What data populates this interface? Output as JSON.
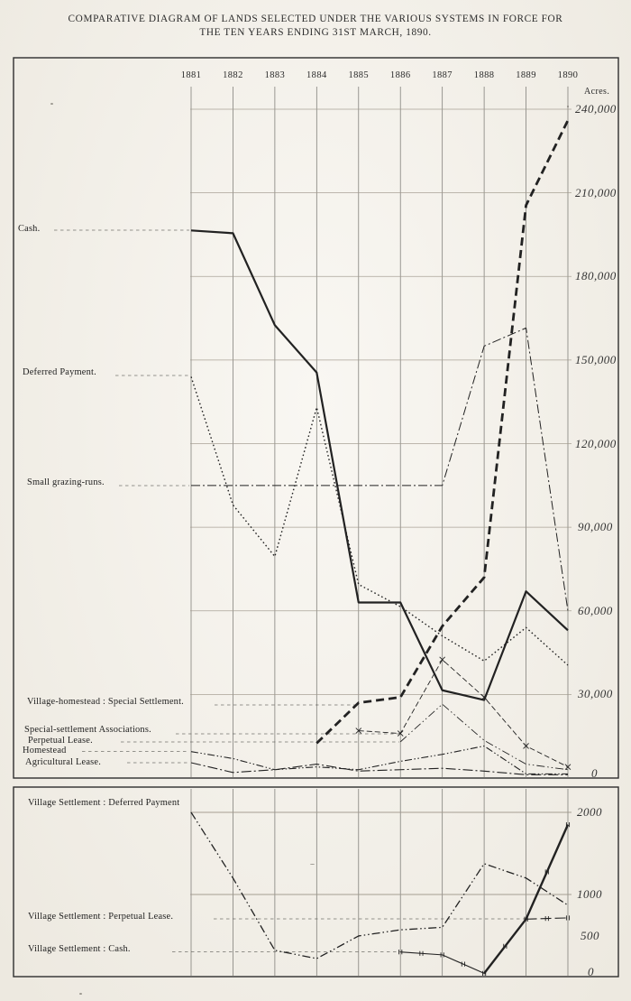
{
  "title": {
    "line1": "COMPARATIVE DIAGRAM OF LANDS SELECTED UNDER THE VARIOUS SYSTEMS IN FORCE FOR",
    "line2": "THE TEN YEARS ENDING 31ST MARCH, 1890."
  },
  "colors": {
    "ink": "#222222",
    "grid_vertical": "#6f6e69",
    "grid_horizontal": "#a19a8e",
    "box": "#2e2e2e",
    "leader": "#555550"
  },
  "chart_data": [
    {
      "id": "main",
      "type": "line",
      "title": "Lands selected under the various systems, 1881-1890",
      "unit_label": "Acres.",
      "years": [
        "1881",
        "1882",
        "1883",
        "1884",
        "1885",
        "1886",
        "1887",
        "1888",
        "1889",
        "1890"
      ],
      "ylim": [
        0,
        240000
      ],
      "grid": true,
      "legend_position": "left-margin-labels",
      "y_ticks": [
        {
          "label": "240,000",
          "value": 240000
        },
        {
          "label": "210,000",
          "value": 210000
        },
        {
          "label": "180,000",
          "value": 180000
        },
        {
          "label": "150,000",
          "value": 150000
        },
        {
          "label": "120,000",
          "value": 120000
        },
        {
          "label": "90,000",
          "value": 90000
        },
        {
          "label": "60,000",
          "value": 60000
        },
        {
          "label": "30,000",
          "value": 30000
        },
        {
          "label": "0",
          "value": 0
        }
      ],
      "series": [
        {
          "id": "cash",
          "label": "Cash.",
          "values": [
            196500,
            195500,
            162500,
            145500,
            63000,
            63000,
            31500,
            28000,
            67000,
            53000
          ]
        },
        {
          "id": "deferred_payment",
          "label": "Deferred Payment.",
          "values": [
            144000,
            98000,
            79500,
            133000,
            69500,
            61500,
            51000,
            42000,
            54000,
            40500
          ]
        },
        {
          "id": "small_grazing_runs",
          "label": "Small grazing-runs.",
          "values": [
            105000,
            105000,
            105000,
            105000,
            105000,
            105000,
            105000,
            155000,
            161500,
            60000
          ]
        },
        {
          "id": "village_homestead",
          "label": "Village-homestead : Special Settlement.",
          "values": [
            null,
            null,
            null,
            12500,
            27000,
            29000,
            54500,
            72000,
            205500,
            236000
          ]
        },
        {
          "id": "special_settlement_associations",
          "label": "Special-settlement Associations.",
          "values": [
            null,
            null,
            null,
            null,
            17000,
            16000,
            42500,
            29000,
            11500,
            4000
          ]
        },
        {
          "id": "perpetual_lease",
          "label": "Perpetual Lease.",
          "values": [
            null,
            null,
            null,
            null,
            null,
            13000,
            26500,
            13500,
            5000,
            3000
          ]
        },
        {
          "id": "homestead",
          "label": "Homestead",
          "values": [
            9500,
            7000,
            3000,
            4000,
            3000,
            6000,
            8500,
            11500,
            1500,
            1500
          ]
        },
        {
          "id": "agricultural_lease",
          "label": "Agricultural Lease.",
          "values": [
            5500,
            2000,
            3000,
            5000,
            2500,
            3000,
            3500,
            2500,
            1200,
            1200
          ]
        }
      ]
    },
    {
      "id": "village",
      "type": "line",
      "title": "Village settlement selections, 1881-1890",
      "unit_label": "",
      "years": [
        "1881",
        "1882",
        "1883",
        "1884",
        "1885",
        "1886",
        "1887",
        "1888",
        "1889",
        "1890"
      ],
      "ylim": [
        0,
        2000
      ],
      "grid": true,
      "legend_position": "left-margin-labels",
      "y_ticks": [
        {
          "label": "2000",
          "value": 2000
        },
        {
          "label": "1000",
          "value": 1000
        },
        {
          "label": "500",
          "value": 500
        },
        {
          "label": "0",
          "value": 0
        }
      ],
      "series": [
        {
          "id": "vs_deferred_payment",
          "label": "Village Settlement : Deferred Payment",
          "values": [
            2000,
            1200,
            320,
            220,
            495,
            570,
            600,
            1375,
            1200,
            870
          ]
        },
        {
          "id": "vs_perpetual_lease",
          "label": "Village Settlement : Perpetual Lease.",
          "values": [
            null,
            null,
            null,
            null,
            null,
            null,
            null,
            null,
            700,
            715
          ]
        },
        {
          "id": "vs_cash",
          "label": "Village Settlement : Cash.",
          "values": [
            null,
            null,
            null,
            null,
            null,
            300,
            265,
            40,
            700,
            1850
          ]
        }
      ]
    }
  ]
}
